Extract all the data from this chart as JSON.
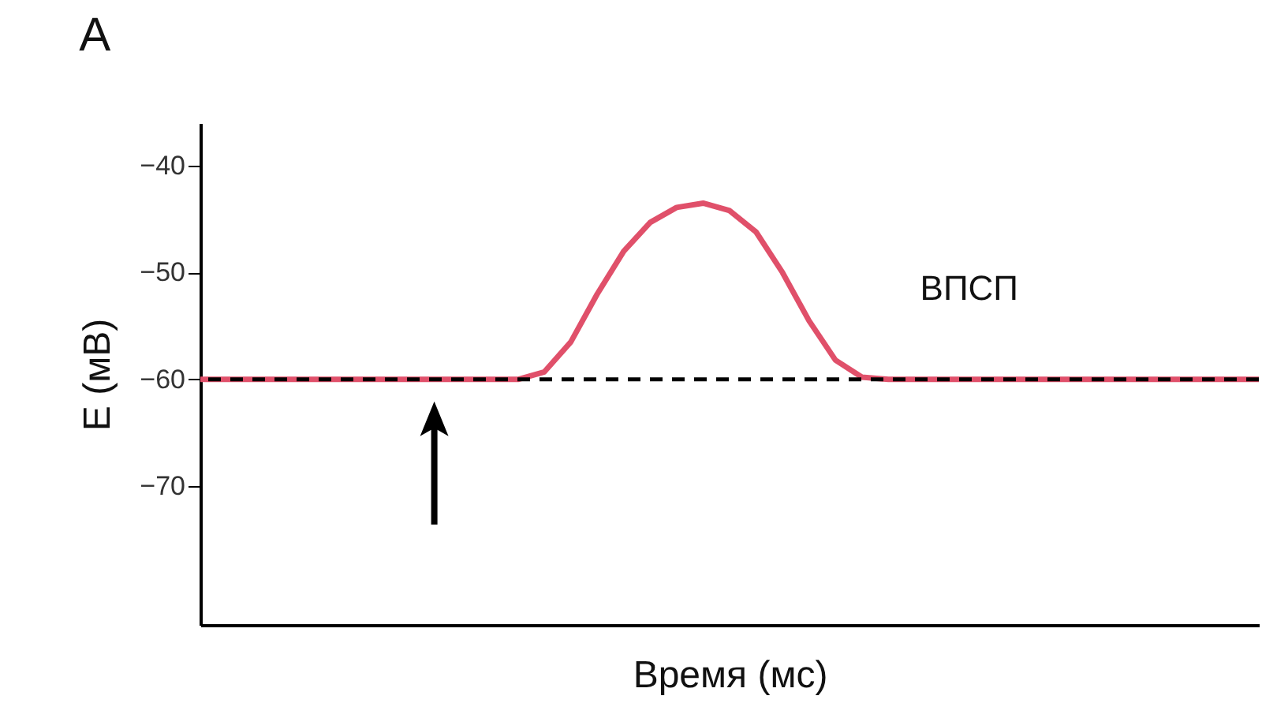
{
  "chart_data": {
    "type": "line",
    "title": "A",
    "xlabel": "Время (мс)",
    "ylabel": "E (мВ)",
    "categories": [
      null,
      null,
      null,
      null,
      null,
      null,
      null,
      null,
      null,
      null,
      null,
      null,
      null,
      null,
      null,
      null,
      null,
      null,
      null,
      null,
      null,
      null,
      null,
      null,
      null,
      null,
      null,
      null,
      null,
      null,
      null,
      null,
      null,
      null,
      null,
      null,
      null,
      null,
      null,
      null,
      null
    ],
    "values": [
      -60,
      -60,
      -60,
      -60,
      -60,
      -60,
      -60,
      -60,
      -60,
      -60,
      -60,
      -60,
      -60,
      -59.3,
      -56.5,
      -52,
      -48,
      -45.3,
      -43.9,
      -43.5,
      -44.2,
      -46.2,
      -50,
      -54.5,
      -58.2,
      -59.8,
      -60,
      -60,
      -60,
      -60,
      -60,
      -60,
      -60,
      -60,
      -60,
      -60,
      -60,
      -60,
      -60,
      -60,
      -60
    ],
    "color": "#e0506a",
    "ylim": [
      -83,
      -36
    ],
    "yticks": [
      -40,
      -50,
      -60,
      -70
    ],
    "ref_lines": [
      {
        "axis": "y",
        "value": -60,
        "color": "#000000",
        "line_style": "dashed"
      }
    ],
    "annotations": [
      "ВПСП"
    ],
    "tick_labels": "y"
  }
}
